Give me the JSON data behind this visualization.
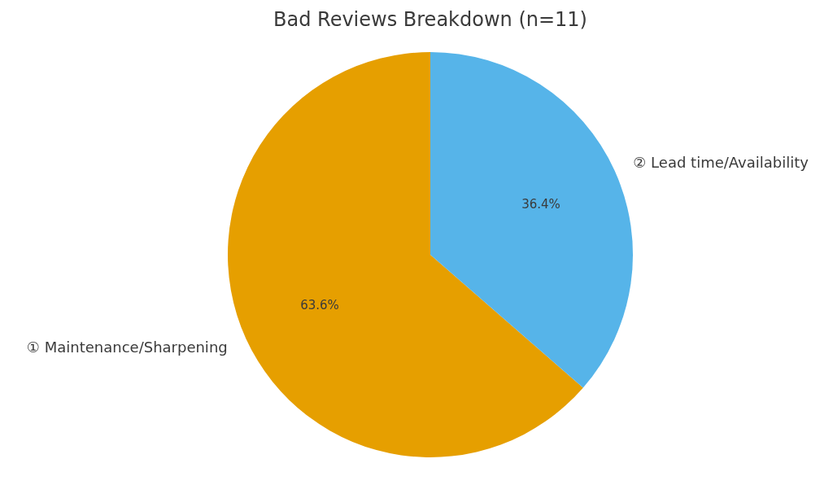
{
  "chart_data": {
    "type": "pie",
    "title": "Bad Reviews Breakdown (n=11)",
    "categories": [
      "① Maintenance/Sharpening",
      "② Lead time/Availability"
    ],
    "values": [
      63.6,
      36.4
    ],
    "colors": [
      "#e69f00",
      "#56b4e9"
    ],
    "value_labels": [
      "63.6%",
      "36.4%"
    ]
  }
}
